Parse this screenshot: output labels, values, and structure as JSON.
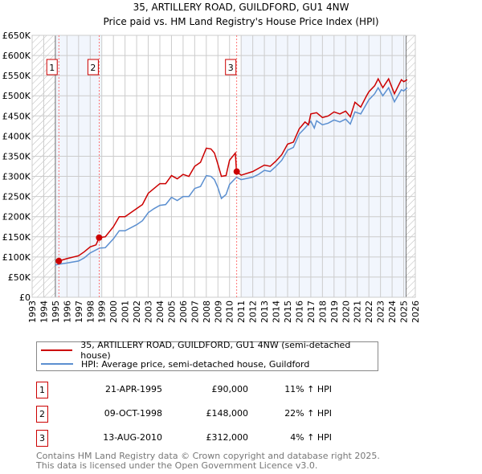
{
  "chart_data": {
    "type": "line",
    "title": "35, ARTILLERY ROAD, GUILDFORD, GU1 4NW",
    "subtitle": "Price paid vs. HM Land Registry's House Price Index (HPI)",
    "xlim": [
      1993,
      2026
    ],
    "ylim": [
      0,
      650000
    ],
    "x_ticks": [
      "1993",
      "1994",
      "1995",
      "1996",
      "1997",
      "1998",
      "1999",
      "2000",
      "2001",
      "2002",
      "2003",
      "2004",
      "2005",
      "2006",
      "2007",
      "2008",
      "2009",
      "2010",
      "2011",
      "2012",
      "2013",
      "2014",
      "2015",
      "2016",
      "2017",
      "2018",
      "2019",
      "2020",
      "2021",
      "2022",
      "2023",
      "2024",
      "2025",
      "2026"
    ],
    "y_ticks": [
      {
        "v": 0,
        "l": "£0"
      },
      {
        "v": 50000,
        "l": "£50K"
      },
      {
        "v": 100000,
        "l": "£100K"
      },
      {
        "v": 150000,
        "l": "£150K"
      },
      {
        "v": 200000,
        "l": "£200K"
      },
      {
        "v": 250000,
        "l": "£250K"
      },
      {
        "v": 300000,
        "l": "£300K"
      },
      {
        "v": 350000,
        "l": "£350K"
      },
      {
        "v": 400000,
        "l": "£400K"
      },
      {
        "v": 450000,
        "l": "£450K"
      },
      {
        "v": 500000,
        "l": "£500K"
      },
      {
        "v": 550000,
        "l": "£550K"
      },
      {
        "v": 600000,
        "l": "£600K"
      },
      {
        "v": 650000,
        "l": "£650K"
      }
    ],
    "grid": true,
    "series": [
      {
        "name": "35, ARTILLERY ROAD, GUILDFORD, GU1 4NW (semi-detached house)",
        "color": "#cc0000",
        "x": [
          1995.3,
          1996,
          1997,
          1997.5,
          1998,
          1998.5,
          1998.77,
          1999.3,
          2000,
          2000.5,
          2001,
          2002,
          2002.5,
          2003,
          2003.5,
          2004,
          2004.5,
          2005,
          2005.5,
          2006,
          2006.5,
          2007,
          2007.5,
          2008,
          2008.4,
          2008.7,
          2009,
          2009.3,
          2009.7,
          2010,
          2010.5,
          2010.6,
          2011,
          2012,
          2012.5,
          2013,
          2013.5,
          2014,
          2014.5,
          2015,
          2015.5,
          2016,
          2016.5,
          2016.8,
          2017,
          2017.5,
          2018,
          2018.5,
          2019,
          2019.5,
          2020,
          2020.4,
          2020.8,
          2021.3,
          2021.8,
          2022,
          2022.5,
          2022.8,
          2023.2,
          2023.7,
          2024.2,
          2024.8,
          2025,
          2025.3
        ],
        "y": [
          90000,
          96000,
          103000,
          113000,
          125000,
          130000,
          148000,
          150000,
          175000,
          200000,
          200000,
          220000,
          230000,
          258000,
          270000,
          282000,
          282000,
          302000,
          294000,
          305000,
          300000,
          325000,
          335000,
          370000,
          368000,
          358000,
          330000,
          300000,
          302000,
          340000,
          358000,
          312000,
          303000,
          312000,
          320000,
          328000,
          325000,
          338000,
          354000,
          380000,
          385000,
          418000,
          435000,
          428000,
          455000,
          458000,
          446000,
          450000,
          460000,
          455000,
          462000,
          448000,
          484000,
          472000,
          500000,
          510000,
          525000,
          542000,
          520000,
          542000,
          505000,
          540000,
          535000,
          540000
        ]
      },
      {
        "name": "HPI: Average price, semi-detached house, Guildford",
        "color": "#5b8fd0",
        "x": [
          1995,
          1995.3,
          1996,
          1997,
          1997.5,
          1998,
          1998.8,
          1999.3,
          2000,
          2000.5,
          2001,
          2002,
          2002.5,
          2003,
          2003.5,
          2004,
          2004.5,
          2005,
          2005.5,
          2006,
          2006.5,
          2007,
          2007.5,
          2008,
          2008.4,
          2008.7,
          2009,
          2009.3,
          2009.7,
          2010,
          2010.6,
          2011,
          2012,
          2012.5,
          2013,
          2013.5,
          2014,
          2014.5,
          2015,
          2015.5,
          2016,
          2016.5,
          2017,
          2017.3,
          2017.5,
          2018,
          2018.5,
          2019,
          2019.5,
          2020,
          2020.4,
          2020.8,
          2021.3,
          2021.8,
          2022,
          2022.5,
          2022.8,
          2023.2,
          2023.7,
          2024.2,
          2024.8,
          2025,
          2025.3
        ],
        "y": [
          80000,
          82000,
          85000,
          90000,
          98000,
          110000,
          122000,
          123000,
          145000,
          165000,
          165000,
          180000,
          190000,
          210000,
          220000,
          228000,
          230000,
          248000,
          240000,
          250000,
          250000,
          270000,
          275000,
          302000,
          300000,
          292000,
          272000,
          245000,
          255000,
          280000,
          298000,
          292000,
          298000,
          305000,
          315000,
          312000,
          325000,
          340000,
          365000,
          372000,
          405000,
          420000,
          437000,
          420000,
          438000,
          428000,
          432000,
          440000,
          435000,
          442000,
          430000,
          460000,
          455000,
          480000,
          490000,
          505000,
          520000,
          500000,
          520000,
          485000,
          515000,
          512000,
          520000
        ]
      }
    ],
    "sales": [
      {
        "label": "1",
        "date": "21-APR-1995",
        "x": 1995.3,
        "price": "£90,000",
        "value": 90000,
        "hpi": "11% ↑ HPI"
      },
      {
        "label": "2",
        "date": "09-OCT-1998",
        "x": 1998.77,
        "price": "£148,000",
        "value": 148000,
        "hpi": "22% ↑ HPI"
      },
      {
        "label": "3",
        "date": "13-AUG-2010",
        "x": 2010.62,
        "price": "£312,000",
        "value": 312000,
        "hpi": "4% ↑ HPI"
      }
    ],
    "shaded_ranges": [
      [
        1995,
        1999
      ],
      [
        2011,
        2025.2
      ]
    ],
    "hatched_ranges": [
      [
        1993,
        1995
      ],
      [
        2025.2,
        2026
      ]
    ]
  },
  "footer": {
    "line1": "Contains HM Land Registry data © Crown copyright and database right 2025.",
    "line2": "This data is licensed under the Open Government Licence v3.0."
  }
}
